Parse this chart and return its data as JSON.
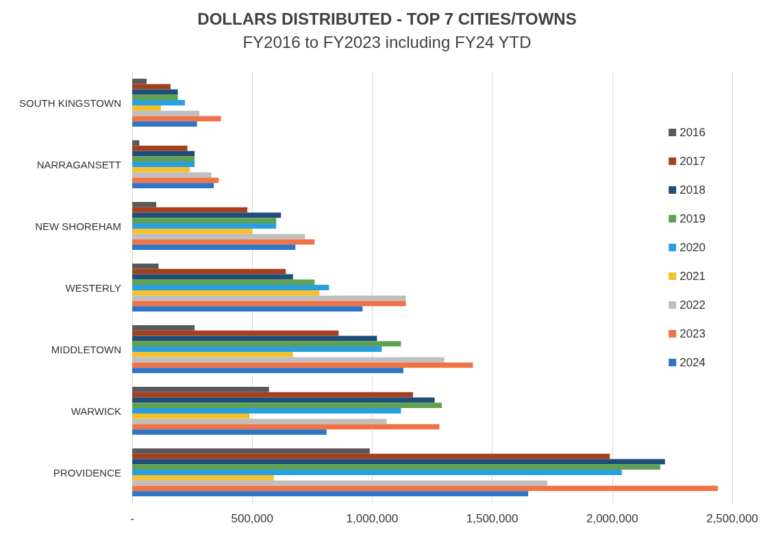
{
  "chart_data": {
    "type": "bar",
    "orientation": "horizontal",
    "title": "DOLLARS DISTRIBUTED - TOP 7 CITIES/TOWNS",
    "subtitle": "FY2016 to FY2023 including FY24 YTD",
    "categories": [
      "SOUTH KINGSTOWN",
      "NARRAGANSETT",
      "NEW SHOREHAM",
      "WESTERLY",
      "MIDDLETOWN",
      "WARWICK",
      "PROVIDENCE"
    ],
    "series": [
      {
        "name": "2016",
        "color": "#595959",
        "values": [
          60000,
          30000,
          100000,
          110000,
          260000,
          570000,
          990000
        ]
      },
      {
        "name": "2017",
        "color": "#a5401f",
        "values": [
          160000,
          230000,
          480000,
          640000,
          860000,
          1170000,
          1990000
        ]
      },
      {
        "name": "2018",
        "color": "#1f4e79",
        "values": [
          190000,
          260000,
          620000,
          670000,
          1020000,
          1260000,
          2220000
        ]
      },
      {
        "name": "2019",
        "color": "#5fa150",
        "values": [
          190000,
          260000,
          600000,
          760000,
          1120000,
          1290000,
          2200000
        ]
      },
      {
        "name": "2020",
        "color": "#2a9fe0",
        "values": [
          220000,
          260000,
          600000,
          820000,
          1040000,
          1120000,
          2040000
        ]
      },
      {
        "name": "2021",
        "color": "#f5c02c",
        "values": [
          120000,
          240000,
          500000,
          780000,
          670000,
          490000,
          590000
        ]
      },
      {
        "name": "2022",
        "color": "#bfbfbf",
        "values": [
          280000,
          330000,
          720000,
          1140000,
          1300000,
          1060000,
          1730000
        ]
      },
      {
        "name": "2023",
        "color": "#f07346",
        "values": [
          370000,
          360000,
          760000,
          1140000,
          1420000,
          1280000,
          2440000
        ]
      },
      {
        "name": "2024",
        "color": "#2e75c6",
        "values": [
          270000,
          340000,
          680000,
          960000,
          1130000,
          810000,
          1650000
        ]
      }
    ],
    "xlim": [
      0,
      2500000
    ],
    "xticks": [
      {
        "value": 0,
        "label": "-"
      },
      {
        "value": 500000,
        "label": "500,000"
      },
      {
        "value": 1000000,
        "label": "1,000,000"
      },
      {
        "value": 1500000,
        "label": "1,500,000"
      },
      {
        "value": 2000000,
        "label": "2,000,000"
      },
      {
        "value": 2500000,
        "label": "2,500,000"
      }
    ],
    "grid": "x",
    "legend": "right"
  }
}
